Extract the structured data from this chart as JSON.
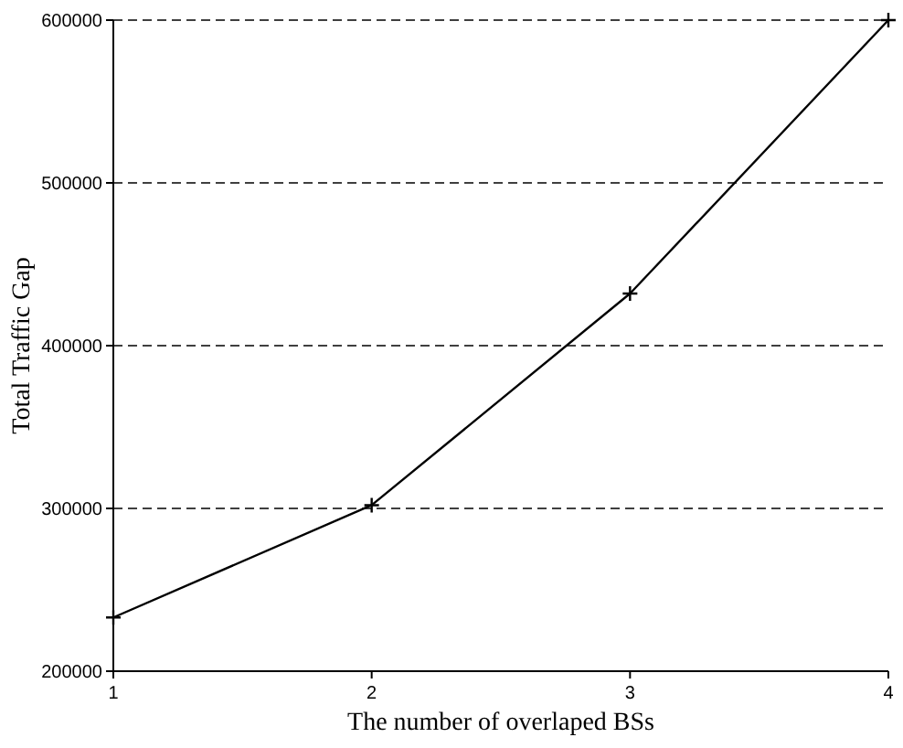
{
  "chart_data": {
    "type": "line",
    "xlabel": "The number of overlaped BSs",
    "ylabel": "Total Traffic Gap",
    "x": [
      1,
      2,
      3,
      4
    ],
    "series": [
      {
        "color": "#000000",
        "values": [
          233000,
          302000,
          432000,
          600000
        ]
      }
    ],
    "xlim": [
      1,
      4
    ],
    "xticks": [
      1,
      2,
      3,
      4
    ],
    "ylim": [
      200000,
      600000
    ],
    "yticks": [
      200000,
      300000,
      400000,
      500000,
      600000
    ],
    "grid": "y",
    "marker": "cross",
    "line_style": "solid"
  }
}
